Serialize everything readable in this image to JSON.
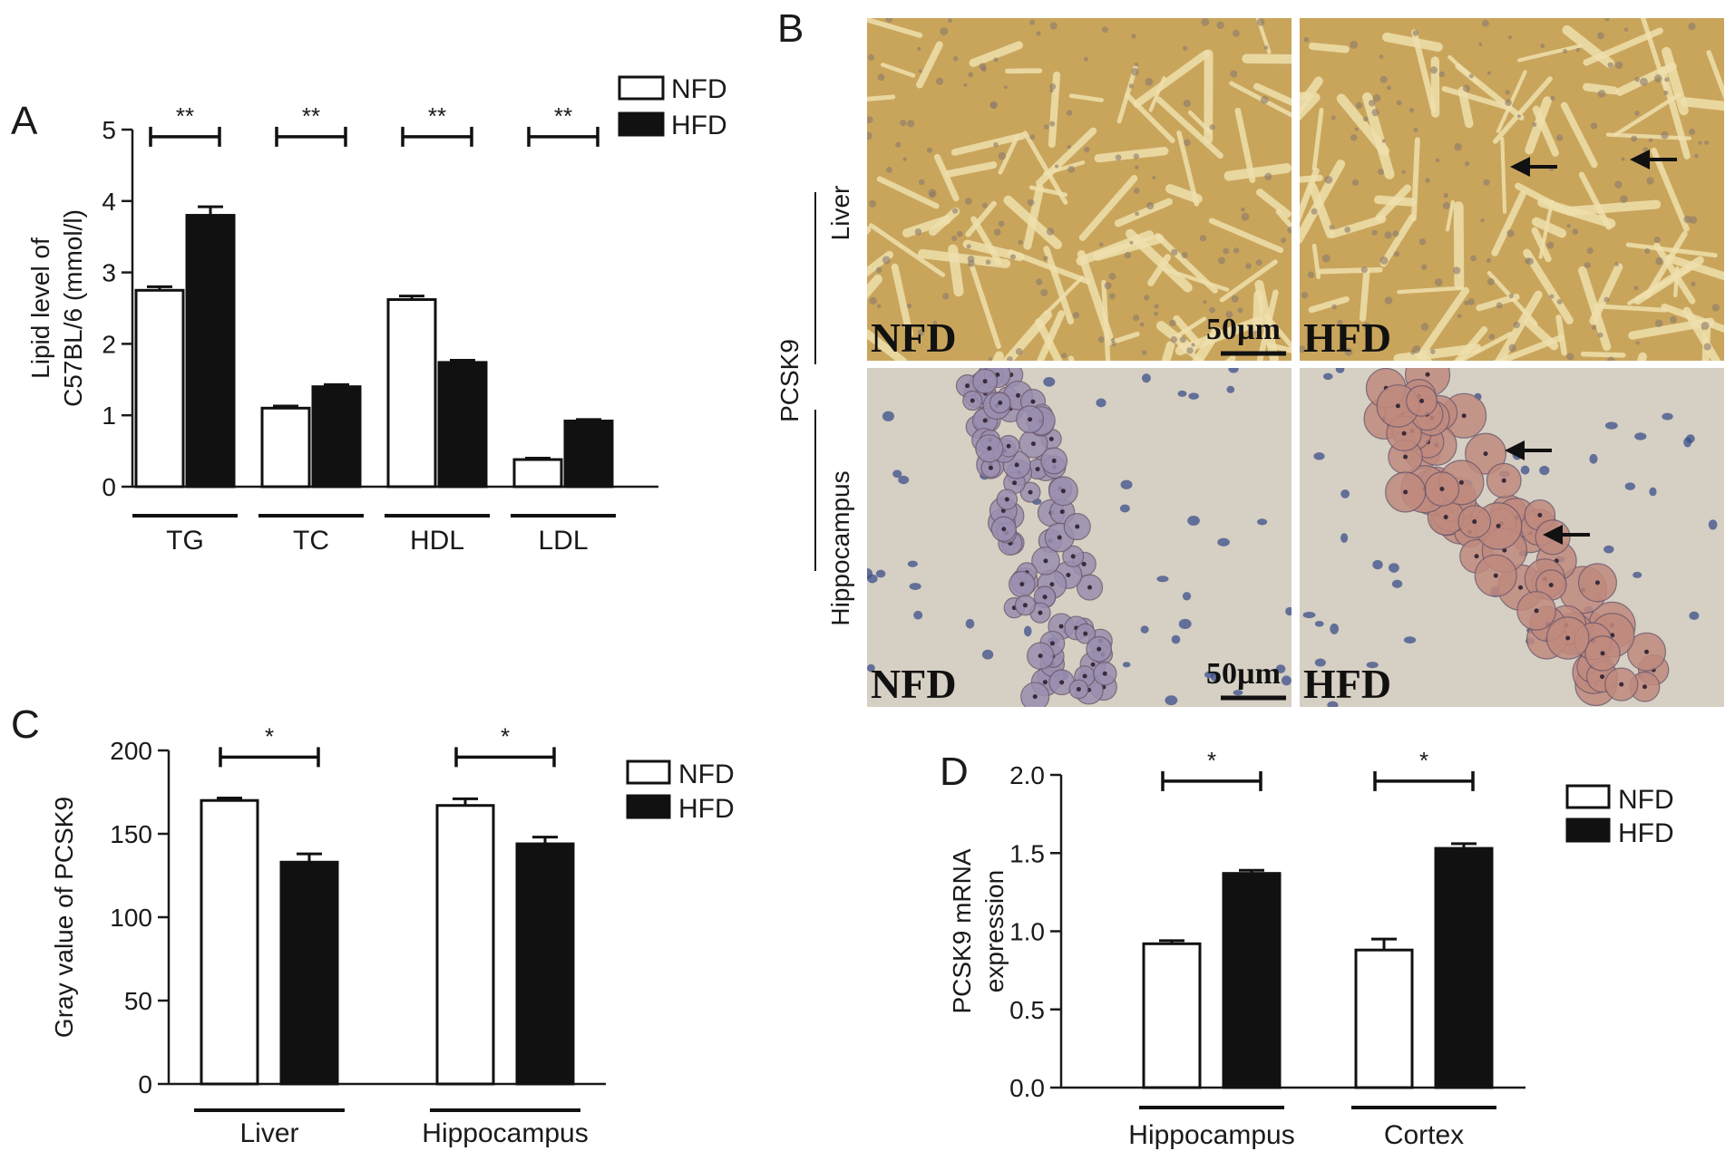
{
  "panels": {
    "A": {
      "letter": "A",
      "legend": {
        "nfd": "NFD",
        "hfd": "HFD"
      }
    },
    "B": {
      "letter": "B",
      "row_group_label": "PCSK9",
      "rows": [
        {
          "label": "Liver",
          "left": "NFD",
          "right": "HFD",
          "scale": "50µm"
        },
        {
          "label": "Hippocampus",
          "left": "NFD",
          "right": "HFD",
          "scale": "50µm"
        }
      ]
    },
    "C": {
      "letter": "C",
      "legend": {
        "nfd": "NFD",
        "hfd": "HFD"
      }
    },
    "D": {
      "letter": "D",
      "legend": {
        "nfd": "NFD",
        "hfd": "HFD"
      }
    }
  },
  "colors": {
    "nfd_fill": "#ffffff",
    "hfd_fill": "#111111",
    "axis": "#1a1a1a",
    "liver_stain": "#c9a55c",
    "liver_sinusoid": "#efe0ad",
    "hippocampus_background": "#d6cfc3",
    "neuron_nfd": "#9a8fb0",
    "neuron_hfd": "#c08a7e",
    "nucleus": "#3b4f8a"
  },
  "chart_data": [
    {
      "panel": "A",
      "type": "bar",
      "categories": [
        "TG",
        "TC",
        "HDL",
        "LDL"
      ],
      "series": [
        {
          "name": "NFD",
          "values": [
            2.75,
            1.1,
            2.62,
            0.38
          ],
          "errors": [
            0.05,
            0.03,
            0.05,
            0.02
          ]
        },
        {
          "name": "HFD",
          "values": [
            3.8,
            1.4,
            1.74,
            0.92
          ],
          "errors": [
            0.12,
            0.03,
            0.03,
            0.02
          ]
        }
      ],
      "significance": [
        "**",
        "**",
        "**",
        "**"
      ],
      "ylabel": "Lipid level of C57BL/6 (mmol/l)",
      "xlabel": "",
      "ylim": [
        0,
        5
      ],
      "yticks": [
        0,
        1,
        2,
        3,
        4,
        5
      ],
      "legend": "top-right"
    },
    {
      "panel": "C",
      "type": "bar",
      "categories": [
        "Liver",
        "Hippocampus"
      ],
      "series": [
        {
          "name": "NFD",
          "values": [
            170,
            167
          ],
          "errors": [
            1.5,
            4
          ]
        },
        {
          "name": "HFD",
          "values": [
            133,
            144
          ],
          "errors": [
            5,
            4
          ]
        }
      ],
      "significance": [
        "*",
        "*"
      ],
      "ylabel": "Gray value of PCSK9",
      "xlabel": "",
      "ylim": [
        0,
        200
      ],
      "yticks": [
        0,
        50,
        100,
        150,
        200
      ],
      "legend": "top-right"
    },
    {
      "panel": "D",
      "type": "bar",
      "categories": [
        "Hippocampus",
        "Cortex"
      ],
      "series": [
        {
          "name": "NFD",
          "values": [
            0.92,
            0.88
          ],
          "errors": [
            0.02,
            0.07
          ]
        },
        {
          "name": "HFD",
          "values": [
            1.37,
            1.53
          ],
          "errors": [
            0.02,
            0.03
          ]
        }
      ],
      "significance": [
        "*",
        "*"
      ],
      "ylabel": "PCSK9 mRNA expression",
      "xlabel": "",
      "ylim": [
        0,
        2.0
      ],
      "yticks": [
        "0.0",
        "0.5",
        "1.0",
        "1.5",
        "2.0"
      ],
      "legend": "top-right"
    }
  ]
}
